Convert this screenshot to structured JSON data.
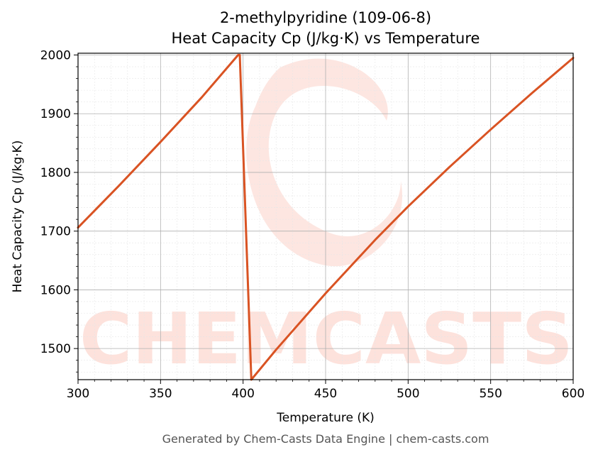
{
  "chart_data": {
    "type": "line",
    "title": "2-methylpyridine (109-06-8)",
    "subtitle": "Heat Capacity Cp (J/kg·K) vs Temperature",
    "xlabel": "Temperature (K)",
    "ylabel": "Heat Capacity Cp (J/kg·K)",
    "xlim": [
      300,
      600
    ],
    "ylim": [
      1447,
      2003
    ],
    "xticks": [
      300,
      350,
      400,
      450,
      500,
      550,
      600
    ],
    "yticks": [
      1500,
      1600,
      1700,
      1800,
      1900,
      2000
    ],
    "grid": true,
    "line_color": "#d95323",
    "series": [
      {
        "x": [
          300,
          325,
          350,
          375,
          397,
          398,
          405,
          420,
          450,
          480,
          500,
          525,
          550,
          575,
          600
        ],
        "values": [
          1706,
          1778,
          1852,
          1928,
          2000,
          2000,
          1447,
          1498,
          1594,
          1685,
          1742,
          1809,
          1873,
          1935,
          1995
        ]
      }
    ]
  },
  "watermark": {
    "text": "CHEMCASTS",
    "color": "#fde2dc"
  },
  "footer": {
    "text": "Generated by Chem-Casts Data Engine | chem-casts.com"
  }
}
